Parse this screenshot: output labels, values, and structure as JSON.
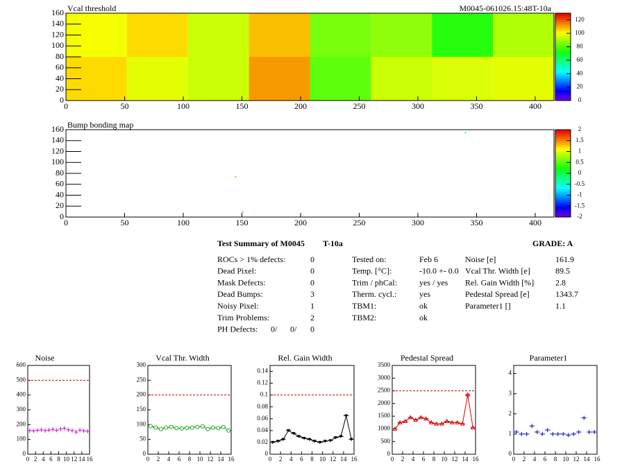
{
  "chart_data": [
    {
      "type": "heatmap",
      "title": "Vcal threshold",
      "subtitle": "M0045-061026.15:48T-10a",
      "xbins": [
        0,
        52,
        104,
        156,
        208,
        260,
        312,
        364,
        416
      ],
      "ybins": [
        0,
        80,
        160
      ],
      "values": [
        [
          105,
          98,
          95,
          112,
          82,
          95,
          97,
          98
        ],
        [
          100,
          105,
          95,
          108,
          85,
          88,
          75,
          92
        ]
      ],
      "xlim": [
        0,
        416
      ],
      "xticks": [
        0,
        50,
        100,
        150,
        200,
        250,
        300,
        350,
        400
      ],
      "ylim": [
        0,
        160
      ],
      "yticks": [
        0,
        20,
        40,
        60,
        80,
        100,
        120,
        140,
        160
      ],
      "zlim": [
        0,
        130
      ],
      "zticks": [
        0,
        20,
        40,
        60,
        80,
        100,
        120
      ]
    },
    {
      "type": "points",
      "title": "Bump bonding map",
      "points": [
        {
          "x": 340,
          "y": 154,
          "value": -0.3
        },
        {
          "x": 144,
          "y": 73,
          "value": 0.4
        },
        {
          "x": 150,
          "y": 9,
          "value": 0.4
        }
      ],
      "xlim": [
        0,
        416
      ],
      "xticks": [
        0,
        50,
        100,
        150,
        200,
        250,
        300,
        350,
        400
      ],
      "ylim": [
        0,
        160
      ],
      "yticks": [
        0,
        20,
        40,
        60,
        80,
        100,
        120,
        140,
        160
      ],
      "zlim": [
        -2,
        2
      ],
      "zticks": [
        -2,
        -1.5,
        -1,
        -0.5,
        0,
        0.5,
        1,
        1.5,
        2
      ]
    },
    {
      "type": "histogram",
      "title": "Noise",
      "marker": "cross",
      "color": "#d000d0",
      "line": false,
      "bins": [
        0,
        1,
        2,
        3,
        4,
        5,
        6,
        7,
        8,
        9,
        10,
        11,
        12,
        13,
        14,
        15,
        16
      ],
      "values": [
        160,
        158,
        162,
        165,
        160,
        163,
        168,
        162,
        170,
        175,
        165,
        160,
        150,
        163,
        158,
        155
      ],
      "limit": 500,
      "xlim": [
        0,
        16
      ],
      "xticks": [
        0,
        2,
        4,
        6,
        8,
        10,
        12,
        14,
        16
      ],
      "ylim": [
        0,
        600
      ],
      "yticks": [
        0,
        100,
        200,
        300,
        400,
        500,
        600
      ]
    },
    {
      "type": "histogram",
      "title": "Vcal Thr. Width",
      "marker": "circle",
      "color": "#20a020",
      "line": true,
      "bins": [
        0,
        1,
        2,
        3,
        4,
        5,
        6,
        7,
        8,
        9,
        10,
        11,
        12,
        13,
        14,
        15,
        16
      ],
      "values": [
        95,
        90,
        85,
        90,
        92,
        88,
        87,
        89,
        90,
        92,
        94,
        85,
        90,
        88,
        92,
        80
      ],
      "limit": 200,
      "xlim": [
        0,
        16
      ],
      "xticks": [
        0,
        2,
        4,
        6,
        8,
        10,
        12,
        14,
        16
      ],
      "ylim": [
        0,
        300
      ],
      "yticks": [
        0,
        50,
        100,
        150,
        200,
        250,
        300
      ]
    },
    {
      "type": "histogram",
      "title": "Rel. Gain Width",
      "marker": "triangle-down",
      "color": "#000000",
      "line": true,
      "bins": [
        0,
        1,
        2,
        3,
        4,
        5,
        6,
        7,
        8,
        9,
        10,
        11,
        12,
        13,
        14,
        15,
        16
      ],
      "values": [
        0.02,
        0.022,
        0.025,
        0.04,
        0.035,
        0.03,
        0.027,
        0.025,
        0.022,
        0.02,
        0.022,
        0.023,
        0.028,
        0.03,
        0.065,
        0.025
      ],
      "limit": 0.1,
      "xlim": [
        0,
        16
      ],
      "xticks": [
        0,
        2,
        4,
        6,
        8,
        10,
        12,
        14,
        16
      ],
      "ylim": [
        0,
        0.15
      ],
      "yticks": [
        0,
        0.02,
        0.04,
        0.06,
        0.08,
        0.1,
        0.12,
        0.14
      ]
    },
    {
      "type": "histogram",
      "title": "Pedestal Spread",
      "marker": "triangle",
      "color": "#d00000",
      "line": true,
      "bins": [
        0,
        1,
        2,
        3,
        4,
        5,
        6,
        7,
        8,
        9,
        10,
        11,
        12,
        13,
        14,
        15,
        16
      ],
      "values": [
        1000,
        1250,
        1300,
        1450,
        1350,
        1450,
        1400,
        1250,
        1200,
        1200,
        1300,
        1250,
        1250,
        1200,
        2350,
        1050
      ],
      "limit": 2500,
      "xlim": [
        0,
        16
      ],
      "xticks": [
        0,
        2,
        4,
        6,
        8,
        10,
        12,
        14,
        16
      ],
      "ylim": [
        0,
        3500
      ],
      "yticks": [
        0,
        500,
        1000,
        1500,
        2000,
        2500,
        3000,
        3500
      ]
    },
    {
      "type": "histogram",
      "title": "Parameter1",
      "marker": "cross",
      "color": "#0000c0",
      "line": false,
      "bins": [
        0,
        1,
        2,
        3,
        4,
        5,
        6,
        7,
        8,
        9,
        10,
        11,
        12,
        13,
        14,
        15,
        16
      ],
      "values": [
        1.1,
        1.0,
        1.0,
        1.4,
        1.1,
        1.0,
        1.2,
        1.0,
        1.0,
        1.0,
        0.95,
        1.0,
        1.1,
        1.8,
        1.1,
        1.1
      ],
      "xlim": [
        0,
        16
      ],
      "xticks": [
        0,
        2,
        4,
        6,
        8,
        10,
        12,
        14,
        16
      ],
      "ylim": [
        0,
        4.4
      ],
      "yticks": [
        0,
        1,
        2,
        3,
        4
      ]
    }
  ],
  "summary": {
    "title": "Test Summary of M0045",
    "tag": "T-10a",
    "grade": "GRADE:  A",
    "left": [
      [
        "ROCs > 1% defects:",
        "0"
      ],
      [
        "Dead Pixel:",
        "0"
      ],
      [
        "Mask Defects:",
        "0"
      ],
      [
        "Dead Bumps:",
        "3"
      ],
      [
        "Noisy Pixel:",
        "1"
      ],
      [
        "Trim Problems:",
        "2"
      ]
    ],
    "ph_label": "PH Defects:",
    "ph_defects": [
      {
        "text": "0/",
        "color": "#000000"
      },
      {
        "text": "0/",
        "color": "#ff0000"
      },
      {
        "text": "0",
        "color": "#0000ff"
      }
    ],
    "middle": [
      [
        "Tested on:",
        "Feb 6"
      ],
      [
        "Temp. [°C]:",
        "-10.0 +- 0.0"
      ],
      [
        "Trim / phCal:",
        "yes / yes"
      ],
      [
        "Therm. cycl.:",
        "yes"
      ],
      [
        "TBM1:",
        "ok"
      ],
      [
        "TBM2:",
        "ok"
      ]
    ],
    "right": [
      [
        "Noise [e]",
        "161.9"
      ],
      [
        "Vcal Thr. Width [e]",
        "89.5"
      ],
      [
        "Rel. Gain Width [%]",
        "2.8"
      ],
      [
        "Pedestal Spread [e]",
        "1343.7"
      ],
      [
        "Parameter1 []",
        "1.1"
      ]
    ]
  }
}
